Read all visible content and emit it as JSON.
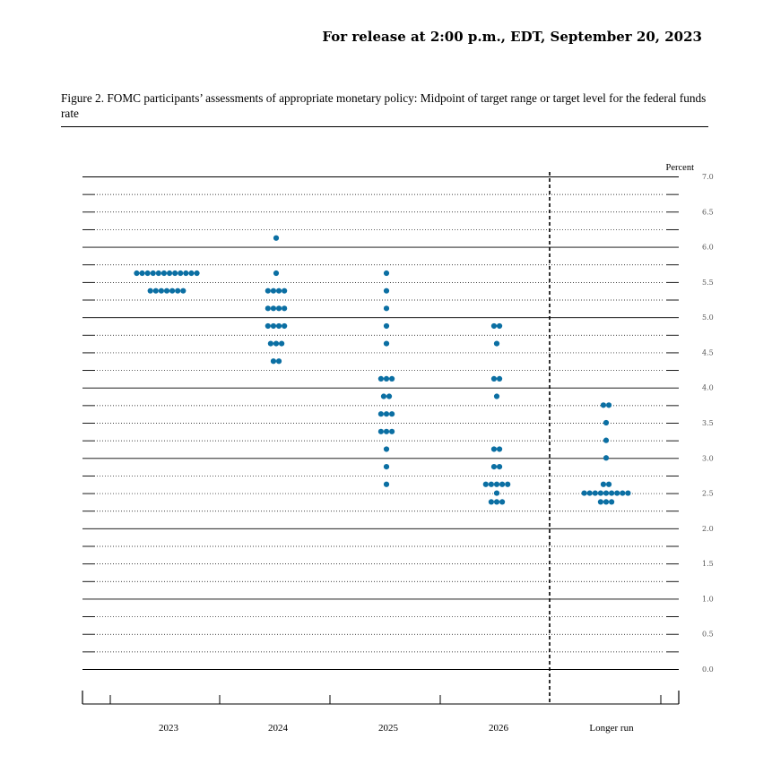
{
  "header": {
    "release": "For release at 2:00 p.m., EDT, September 20, 2023",
    "figure_title": "Figure 2.  FOMC participants’ assessments of appropriate monetary policy:  Midpoint of target range or target level for the federal funds rate"
  },
  "chart_data": {
    "type": "scatter",
    "ylabel": "Percent",
    "ylim": [
      0,
      7
    ],
    "yticks": [
      "0.0",
      "0.5",
      "1.0",
      "1.5",
      "2.0",
      "2.5",
      "3.0",
      "3.5",
      "4.0",
      "4.5",
      "5.0",
      "5.5",
      "6.0",
      "6.5",
      "7.0"
    ],
    "categories": [
      "2023",
      "2024",
      "2025",
      "2026",
      "Longer run"
    ],
    "dot_color": "#0b6fa3",
    "grid": "dotted at 0.25 intervals, solid at whole numbers",
    "separator": "dashed vertical line before Longer run",
    "dots": [
      {
        "category": "2023",
        "rates": [
          {
            "y": 5.625,
            "n": 12
          },
          {
            "y": 5.375,
            "n": 7
          }
        ]
      },
      {
        "category": "2024",
        "rates": [
          {
            "y": 6.125,
            "n": 1
          },
          {
            "y": 5.625,
            "n": 1
          },
          {
            "y": 5.375,
            "n": 4
          },
          {
            "y": 5.125,
            "n": 4
          },
          {
            "y": 4.875,
            "n": 4
          },
          {
            "y": 4.625,
            "n": 3
          },
          {
            "y": 4.375,
            "n": 2
          }
        ]
      },
      {
        "category": "2025",
        "rates": [
          {
            "y": 5.625,
            "n": 1
          },
          {
            "y": 5.375,
            "n": 1
          },
          {
            "y": 5.125,
            "n": 1
          },
          {
            "y": 4.875,
            "n": 1
          },
          {
            "y": 4.625,
            "n": 1
          },
          {
            "y": 4.125,
            "n": 3
          },
          {
            "y": 3.875,
            "n": 2
          },
          {
            "y": 3.625,
            "n": 3
          },
          {
            "y": 3.375,
            "n": 3
          },
          {
            "y": 3.125,
            "n": 1
          },
          {
            "y": 2.875,
            "n": 1
          },
          {
            "y": 2.625,
            "n": 1
          }
        ]
      },
      {
        "category": "2026",
        "rates": [
          {
            "y": 4.875,
            "n": 2
          },
          {
            "y": 4.625,
            "n": 1
          },
          {
            "y": 4.125,
            "n": 2
          },
          {
            "y": 3.875,
            "n": 1
          },
          {
            "y": 3.125,
            "n": 2
          },
          {
            "y": 2.875,
            "n": 2
          },
          {
            "y": 2.625,
            "n": 5
          },
          {
            "y": 2.5,
            "n": 1
          },
          {
            "y": 2.375,
            "n": 3
          }
        ]
      },
      {
        "category": "Longer run",
        "rates": [
          {
            "y": 3.75,
            "n": 2
          },
          {
            "y": 3.5,
            "n": 1
          },
          {
            "y": 3.25,
            "n": 1
          },
          {
            "y": 3.0,
            "n": 1
          },
          {
            "y": 2.625,
            "n": 2
          },
          {
            "y": 2.5,
            "n": 9
          },
          {
            "y": 2.375,
            "n": 3
          }
        ]
      }
    ]
  }
}
